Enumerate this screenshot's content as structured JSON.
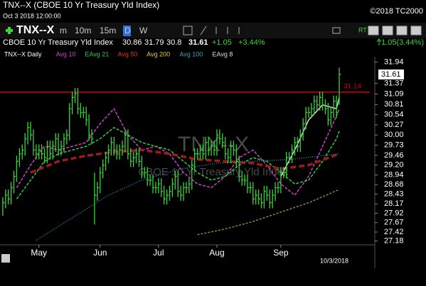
{
  "header": {
    "title": "TNX--X (CBOE 10 Yr Treasury Yld Index)",
    "timestamp": "Oct 3 2018 12:00:00",
    "copyright": "©2018 TC2000"
  },
  "toolbar": {
    "symbol": "TNX--X",
    "intervals": [
      "m",
      "10m",
      "15m",
      "D",
      "W"
    ],
    "active_interval": "D",
    "rt": "RT",
    "change": "1.05(3.44%)"
  },
  "quote": {
    "name": "CBOE 10 Yr Treasury Yld Index",
    "open": 30.86,
    "high": 31.79,
    "low": 30.8,
    "close": 31.61,
    "change": "+1.05",
    "change_pct": "+3.44%"
  },
  "chart_data": {
    "type": "ohlc",
    "bar_name": "TNX--X Daily",
    "color": "#3bd43b",
    "x": [
      0,
      1,
      2,
      3,
      4,
      5,
      6,
      7,
      8,
      9,
      10,
      11,
      12,
      13,
      14,
      15,
      16,
      17,
      18,
      19,
      20,
      21,
      22,
      23,
      24,
      25,
      26,
      27,
      28,
      29,
      30,
      31,
      32,
      33,
      34,
      35,
      36,
      37,
      38,
      39,
      40,
      41,
      42,
      43,
      44,
      45,
      46,
      47,
      48,
      49,
      50,
      51,
      52,
      53,
      54,
      55,
      56,
      57,
      58,
      59,
      60,
      61,
      62,
      63,
      64,
      65,
      66,
      67,
      68,
      69,
      70,
      71,
      72,
      73,
      74,
      75,
      76,
      77,
      78,
      79,
      80,
      81,
      82,
      83,
      84,
      85,
      86,
      87,
      88,
      89,
      90,
      91,
      92,
      93,
      94,
      95,
      96,
      97,
      98,
      99,
      100,
      101,
      102,
      103,
      104,
      105,
      106,
      107,
      108,
      109,
      110,
      111,
      112,
      113,
      114,
      115,
      116,
      117,
      118,
      119,
      120,
      121
    ],
    "high": [
      28.35,
      28.55,
      28.55,
      28.75,
      29.05,
      29.45,
      29.65,
      29.75,
      30.05,
      30.35,
      30.35,
      30.15,
      29.75,
      29.75,
      29.75,
      29.65,
      29.85,
      29.85,
      29.85,
      30.05,
      30.05,
      29.85,
      30.05,
      30.15,
      30.85,
      31.15,
      31.25,
      31.25,
      30.85,
      30.75,
      30.75,
      30.55,
      30.15,
      29.0,
      28.75,
      29.15,
      29.35,
      29.55,
      29.75,
      29.95,
      29.95,
      29.75,
      29.75,
      29.85,
      30.15,
      30.15,
      29.65,
      29.55,
      29.65,
      29.65,
      29.45,
      29.15,
      29.15,
      28.95,
      28.95,
      28.75,
      28.85,
      28.85,
      28.65,
      28.55,
      28.65,
      28.85,
      29.05,
      29.05,
      28.65,
      28.75,
      28.75,
      28.85,
      29.35,
      29.65,
      29.65,
      29.75,
      29.75,
      29.95,
      29.95,
      29.85,
      29.85,
      30.15,
      30.15,
      30.05,
      29.95,
      29.65,
      29.85,
      29.85,
      29.75,
      29.45,
      29.05,
      28.95,
      28.95,
      28.75,
      28.75,
      28.55,
      28.55,
      28.45,
      28.65,
      28.65,
      28.55,
      28.55,
      28.75,
      28.75,
      29.15,
      29.15,
      29.55,
      29.55,
      29.75,
      29.95,
      29.95,
      30.15,
      30.45,
      30.75,
      30.75,
      30.85,
      31.05,
      31.05,
      31.15,
      31.15,
      30.95,
      30.85,
      30.75,
      31.05,
      31.05,
      31.79
    ],
    "low": [
      27.85,
      28.05,
      28.15,
      28.15,
      28.45,
      28.75,
      29.15,
      29.35,
      29.45,
      29.75,
      29.85,
      29.45,
      29.35,
      29.35,
      29.35,
      29.25,
      29.25,
      29.35,
      29.35,
      29.55,
      29.45,
      29.45,
      29.55,
      29.75,
      29.85,
      30.55,
      30.85,
      30.55,
      30.45,
      30.45,
      30.25,
      29.85,
      29.75,
      27.62,
      28.25,
      28.45,
      28.85,
      29.05,
      29.25,
      29.45,
      29.45,
      29.35,
      29.35,
      29.45,
      29.55,
      29.35,
      29.15,
      29.15,
      29.25,
      29.15,
      28.85,
      28.85,
      28.65,
      28.65,
      28.45,
      28.45,
      28.45,
      28.35,
      28.15,
      28.15,
      28.25,
      28.35,
      28.55,
      28.35,
      28.25,
      28.25,
      28.45,
      28.45,
      28.55,
      29.05,
      29.35,
      29.35,
      29.35,
      29.35,
      29.45,
      29.45,
      29.45,
      29.45,
      29.75,
      29.65,
      29.35,
      29.25,
      29.25,
      29.45,
      29.15,
      28.75,
      28.65,
      28.65,
      28.45,
      28.45,
      28.15,
      28.15,
      28.15,
      28.05,
      28.05,
      28.25,
      28.05,
      28.05,
      28.25,
      28.45,
      28.45,
      28.85,
      28.85,
      29.25,
      29.25,
      29.45,
      29.55,
      29.55,
      29.85,
      30.15,
      30.45,
      30.45,
      30.55,
      30.65,
      30.65,
      30.65,
      30.55,
      30.25,
      30.25,
      30.45,
      30.45,
      30.8
    ],
    "close": [
      28.2,
      28.4,
      28.3,
      28.6,
      28.9,
      29.3,
      29.5,
      29.6,
      29.9,
      30.2,
      30.0,
      29.6,
      29.5,
      29.6,
      29.5,
      29.4,
      29.7,
      29.5,
      29.7,
      29.9,
      29.6,
      29.7,
      29.9,
      30.0,
      30.7,
      31.0,
      31.1,
      30.7,
      30.6,
      30.6,
      30.4,
      30.0,
      29.9,
      28.4,
      28.6,
      29.0,
      29.2,
      29.4,
      29.6,
      29.8,
      29.6,
      29.5,
      29.6,
      29.7,
      30.0,
      29.5,
      29.3,
      29.4,
      29.5,
      29.3,
      29.0,
      29.0,
      28.8,
      28.8,
      28.6,
      28.6,
      28.7,
      28.5,
      28.3,
      28.4,
      28.5,
      28.7,
      28.9,
      28.5,
      28.4,
      28.6,
      28.6,
      28.7,
      29.2,
      29.5,
      29.5,
      29.6,
      29.5,
      29.8,
      29.6,
      29.7,
      29.6,
      30.0,
      29.9,
      29.8,
      29.5,
      29.4,
      29.7,
      29.6,
      29.3,
      28.9,
      28.8,
      28.8,
      28.6,
      28.6,
      28.3,
      28.4,
      28.3,
      28.2,
      28.5,
      28.4,
      28.2,
      28.4,
      28.6,
      28.6,
      29.0,
      29.0,
      29.4,
      29.4,
      29.6,
      29.8,
      29.7,
      30.0,
      30.3,
      30.6,
      30.6,
      30.7,
      30.9,
      30.8,
      31.0,
      30.8,
      30.7,
      30.4,
      30.6,
      30.9,
      30.6,
      31.61
    ],
    "series": [
      {
        "name": "Avg 10",
        "color": "#d040d0",
        "dash": "4 2",
        "x": [
          5,
          10,
          15,
          20,
          25,
          30,
          35,
          40,
          45,
          50,
          55,
          60,
          65,
          70,
          75,
          80,
          85,
          90,
          95,
          100,
          105,
          110,
          115,
          120,
          121
        ],
        "values": [
          28.6,
          29.2,
          29.7,
          29.6,
          29.7,
          29.8,
          30.3,
          30.7,
          30.0,
          29.6,
          29.7,
          29.5,
          29.0,
          28.7,
          28.6,
          28.9,
          29.4,
          29.6,
          29.2,
          28.7,
          28.4,
          28.9,
          29.7,
          30.5,
          30.7
        ]
      },
      {
        "name": "EAvg 21",
        "color": "#2ecc40",
        "dash": "4 2",
        "x": [
          5,
          10,
          15,
          20,
          25,
          30,
          35,
          40,
          45,
          50,
          55,
          60,
          65,
          70,
          75,
          80,
          85,
          90,
          95,
          100,
          105,
          110,
          115,
          120,
          121
        ],
        "values": [
          28.3,
          28.8,
          29.3,
          29.5,
          29.6,
          29.7,
          29.9,
          30.2,
          30.0,
          29.8,
          29.7,
          29.6,
          29.3,
          29.0,
          28.8,
          28.9,
          29.2,
          29.4,
          29.3,
          29.0,
          28.7,
          28.8,
          29.3,
          29.9,
          30.1
        ]
      },
      {
        "name": "Avg 50",
        "label_color": "#e03030",
        "color": "#9b1c1c",
        "dash": "8 4",
        "width": 3.5,
        "x": [
          10,
          20,
          30,
          40,
          50,
          60,
          70,
          80,
          90,
          100,
          110,
          121
        ],
        "values": [
          29.0,
          29.3,
          29.45,
          29.55,
          29.6,
          29.5,
          29.35,
          29.3,
          29.25,
          29.1,
          29.2,
          29.5
        ]
      },
      {
        "name": "Avg 200",
        "label_color": "#e0d020",
        "color": "#8a8a30",
        "dash": "3 2",
        "x": [
          70,
          80,
          90,
          100,
          110,
          121
        ],
        "values": [
          27.35,
          27.5,
          27.7,
          27.95,
          28.2,
          28.55
        ]
      },
      {
        "name": "Avg 100",
        "label_color": "#3aa0c0",
        "color": "#2a8aa8",
        "dash": "1 2",
        "x": [
          12,
          25,
          38,
          50,
          64,
          77,
          90,
          103,
          121
        ],
        "values": [
          27.2,
          27.8,
          28.4,
          28.8,
          29.1,
          29.25,
          29.3,
          29.35,
          29.5
        ]
      },
      {
        "name": "EAvg 8",
        "color": "#dddddd",
        "dash": "none",
        "x": [
          100,
          105,
          110,
          115,
          120,
          121
        ],
        "values": [
          28.9,
          29.6,
          30.4,
          30.8,
          30.7,
          31.0
        ]
      }
    ],
    "xlim": [
      -1,
      132
    ],
    "xticks": [
      {
        "value": 13,
        "label": "May"
      },
      {
        "value": 35,
        "label": "Jun"
      },
      {
        "value": 56,
        "label": "Jul"
      },
      {
        "value": 77,
        "label": "Aug"
      },
      {
        "value": 100,
        "label": "Sep"
      }
    ],
    "date_label": "10/3/2018",
    "ylim": [
      27.08,
      32.08
    ],
    "yticks": [
      31.94,
      31.37,
      31.09,
      30.81,
      30.54,
      30.27,
      {
        "value": 30,
        "label": "30.00"
      },
      29.73,
      29.46,
      {
        "value": 29.2,
        "label": "29.20"
      },
      28.94,
      28.68,
      28.43,
      28.17,
      27.92,
      27.67,
      27.42,
      27.18
    ],
    "hline": {
      "value": 31.14,
      "color": "#cc0000"
    }
  }
}
